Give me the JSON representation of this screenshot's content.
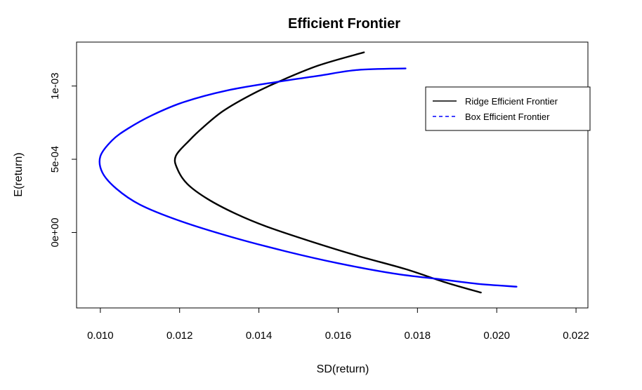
{
  "chart_data": {
    "type": "line",
    "title": "Efficient Frontier",
    "xlabel": "SD(return)",
    "ylabel": "E(return)",
    "xlim": [
      0.0094,
      0.0223
    ],
    "ylim": [
      -0.000515,
      0.0013
    ],
    "x_ticks": [
      0.01,
      0.012,
      0.014,
      0.016,
      0.018,
      0.02,
      0.022
    ],
    "x_tick_labels": [
      "0.010",
      "0.012",
      "0.014",
      "0.016",
      "0.018",
      "0.020",
      "0.022"
    ],
    "y_ticks": [
      0.0,
      0.0005,
      0.001
    ],
    "y_tick_labels": [
      "0e+00",
      "5e-04",
      "1e-03"
    ],
    "grid": false,
    "legend_position": "top-right",
    "series": [
      {
        "name": "Ridge Efficient Frontier",
        "color": "#000000",
        "dash": "solid",
        "points": [
          [
            0.01665,
            0.00123
          ],
          [
            0.0155,
            0.00114
          ],
          [
            0.0145,
            0.00103
          ],
          [
            0.0138,
            0.00094
          ],
          [
            0.0131,
            0.00083
          ],
          [
            0.0126,
            0.00072
          ],
          [
            0.01225,
            0.00063
          ],
          [
            0.0119,
            0.00052
          ],
          [
            0.01195,
            0.00043
          ],
          [
            0.0122,
            0.00033
          ],
          [
            0.0127,
            0.00023
          ],
          [
            0.0134,
            0.00013
          ],
          [
            0.0142,
            4e-05
          ],
          [
            0.0153,
            -6e-05
          ],
          [
            0.0165,
            -0.00016
          ],
          [
            0.0177,
            -0.00025
          ],
          [
            0.0187,
            -0.00034
          ],
          [
            0.0196,
            -0.00041
          ]
        ]
      },
      {
        "name": "Box Efficient Frontier",
        "color": "#0000ff",
        "dash": "solid",
        "points": [
          [
            0.0177,
            0.00112
          ],
          [
            0.0165,
            0.00111
          ],
          [
            0.0155,
            0.00107
          ],
          [
            0.0145,
            0.00103
          ],
          [
            0.0132,
            0.00097
          ],
          [
            0.0121,
            0.00089
          ],
          [
            0.0113,
            0.0008
          ],
          [
            0.0107,
            0.00071
          ],
          [
            0.0103,
            0.00063
          ],
          [
            0.01,
            0.00052
          ],
          [
            0.01005,
            0.00041
          ],
          [
            0.0104,
            0.0003
          ],
          [
            0.011,
            0.00019
          ],
          [
            0.012,
            8e-05
          ],
          [
            0.0133,
            -3e-05
          ],
          [
            0.0147,
            -0.00013
          ],
          [
            0.016,
            -0.00021
          ],
          [
            0.0174,
            -0.00028
          ],
          [
            0.0186,
            -0.00032
          ],
          [
            0.0195,
            -0.00035
          ],
          [
            0.0205,
            -0.00037
          ]
        ]
      }
    ]
  }
}
